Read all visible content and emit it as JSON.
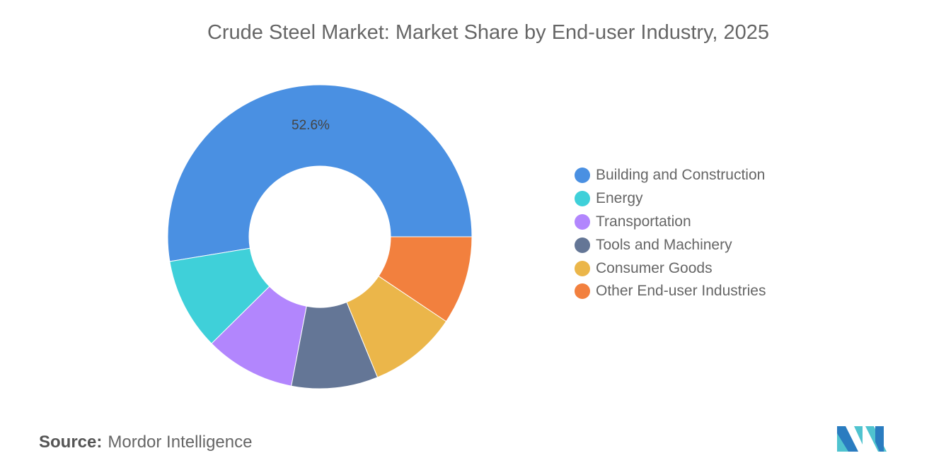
{
  "chart_data": {
    "type": "pie",
    "variant": "donut",
    "title": "Crude Steel Market: Market Share by End-user Industry, 2025",
    "categories": [
      "Building and Construction",
      "Energy",
      "Transportation",
      "Tools and Machinery",
      "Consumer Goods",
      "Other End-user Industries"
    ],
    "values": [
      52.6,
      9.8,
      9.6,
      9.2,
      9.4,
      9.4
    ],
    "unit": "%",
    "data_labels": [
      "52.6%",
      "",
      "",
      "",
      "",
      ""
    ],
    "colors": [
      "#4a90e2",
      "#3fd0d9",
      "#b286fd",
      "#647696",
      "#ebb64a",
      "#f2803e"
    ],
    "legend_position": "right"
  },
  "source": {
    "label": "Source:",
    "value": "Mordor Intelligence"
  },
  "logo": {
    "text": "Mordor Intelligence",
    "colors": [
      "#2a7cc0",
      "#4fc3cf"
    ]
  }
}
